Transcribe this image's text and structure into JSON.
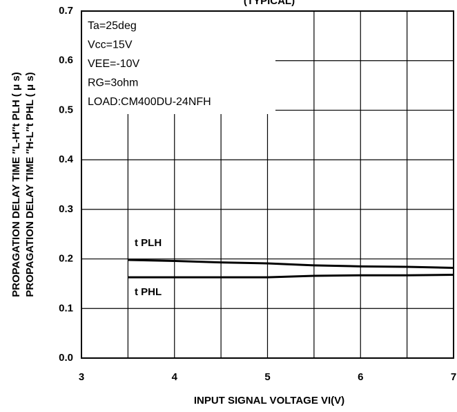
{
  "chart_data": {
    "type": "line",
    "title": "(TYPICAL)",
    "x_label": "INPUT SIGNAL VOLTAGE  VI(V)",
    "y_label_lines": [
      "PROPAGATION DELAY TIME ″L-H″t PLH ( μ s)",
      "PROPAGATION DELAY TIME ″H-L″t PHL ( μ s)"
    ],
    "conditions": [
      "Ta=25deg",
      "Vcc=15V",
      "VEE=-10V",
      "RG=3ohm",
      "LOAD:CM400DU-24NFH"
    ],
    "x": [
      3.5,
      4,
      4.5,
      5,
      5.5,
      6,
      6.5,
      7
    ],
    "series": [
      {
        "name": "t PLH",
        "color": "#000000",
        "values": [
          0.198,
          0.196,
          0.193,
          0.191,
          0.187,
          0.185,
          0.184,
          0.182
        ]
      },
      {
        "name": "t PHL",
        "color": "#000000",
        "values": [
          0.163,
          0.163,
          0.163,
          0.163,
          0.166,
          0.167,
          0.167,
          0.168
        ]
      }
    ],
    "xlim": [
      3,
      7
    ],
    "xticks": [
      3,
      4,
      5,
      6,
      7
    ],
    "ylim": [
      0,
      0.7
    ],
    "yticks": [
      {
        "value": 0,
        "label": "0.0"
      },
      0.1,
      0.2,
      0.3,
      0.4,
      0.5,
      0.6,
      0.7
    ],
    "grid": true
  }
}
